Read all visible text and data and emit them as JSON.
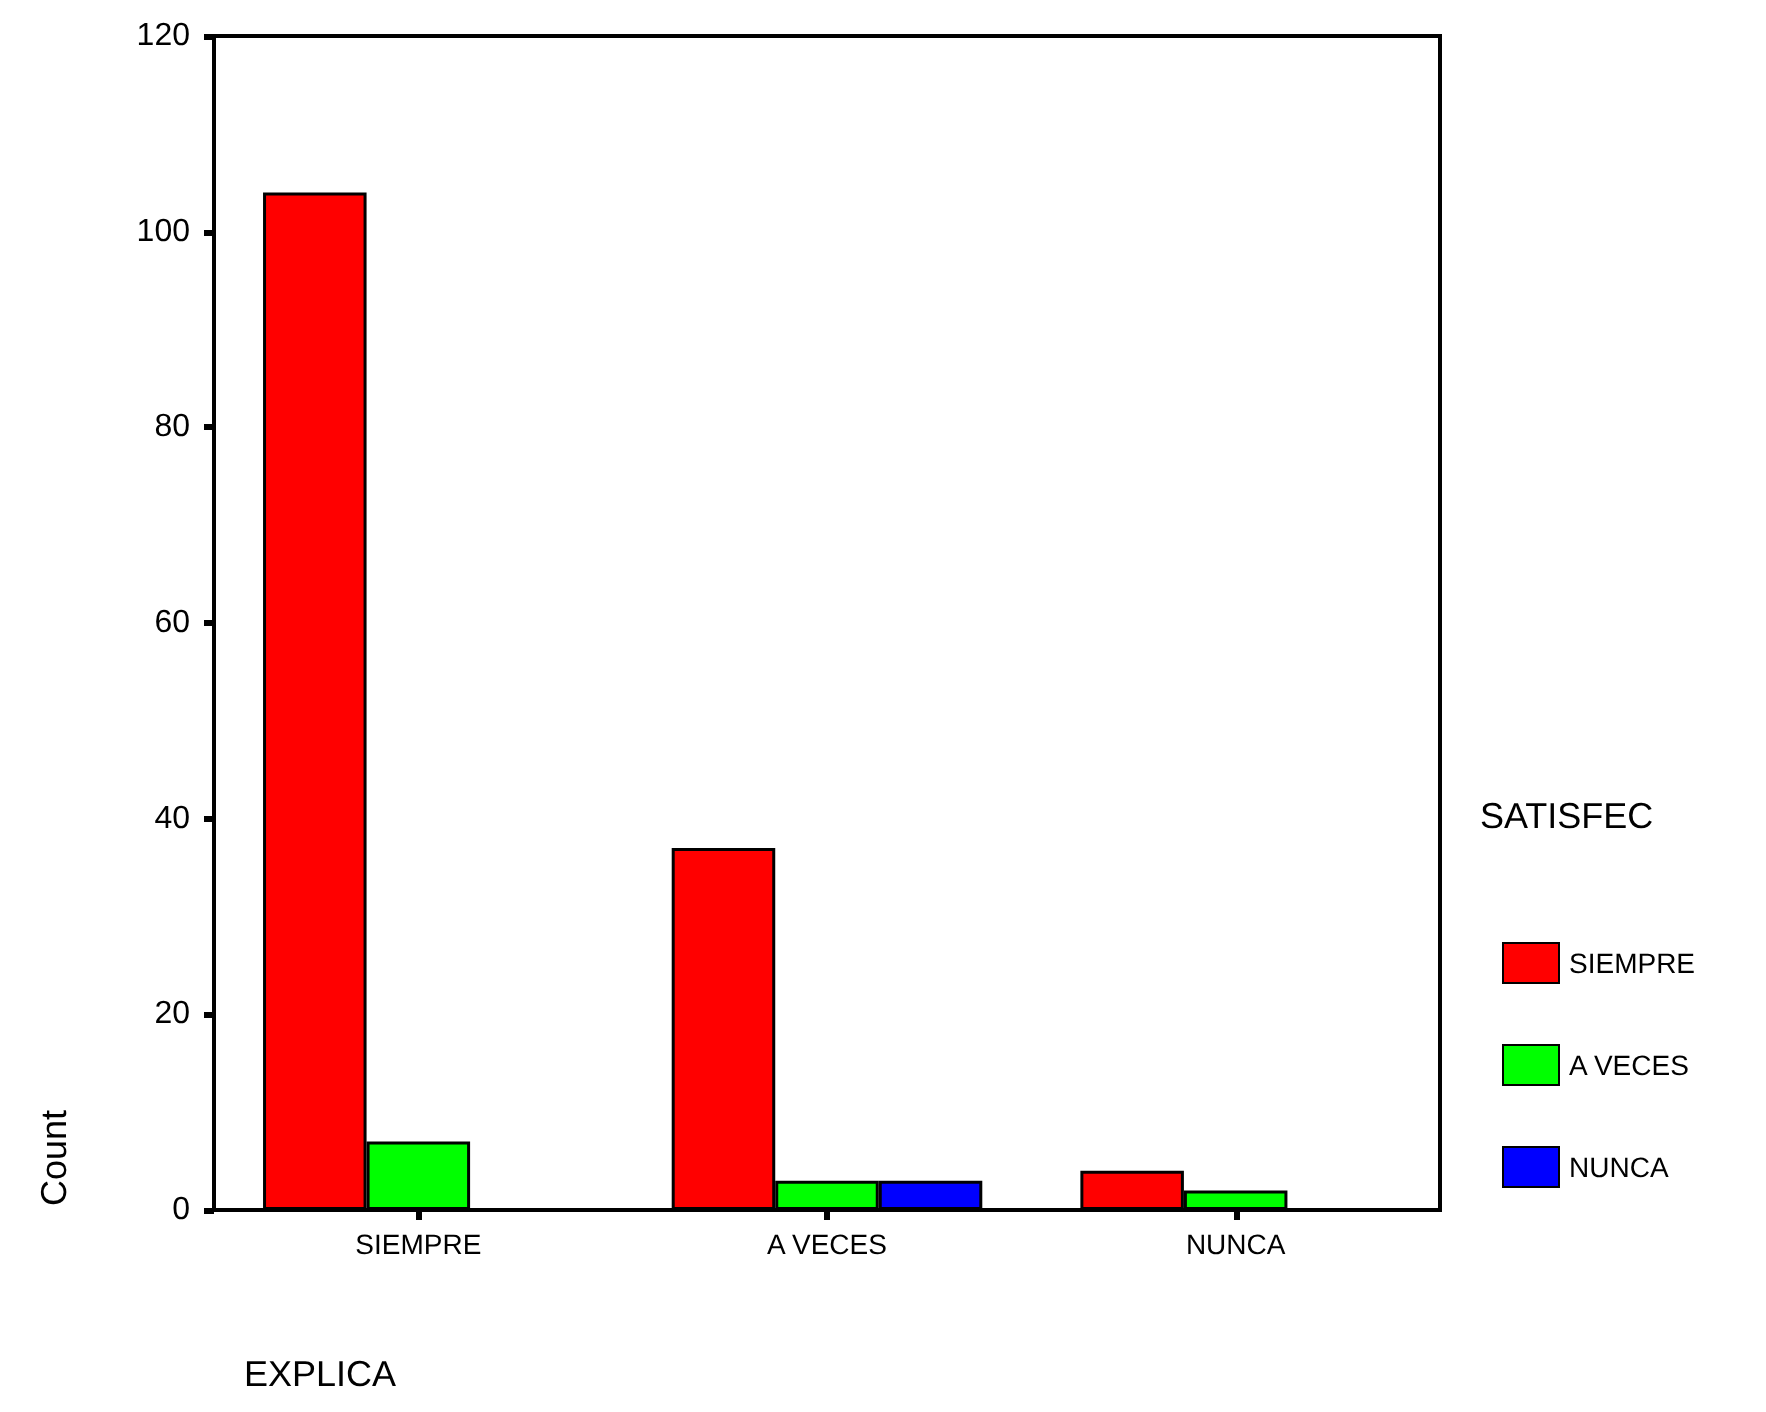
{
  "chart_data": {
    "type": "bar",
    "xlabel": "EXPLICA",
    "ylabel": "Count",
    "legend_title": "SATISFEC",
    "categories": [
      "SIEMPRE",
      "A VECES",
      "NUNCA"
    ],
    "series": [
      {
        "name": "SIEMPRE",
        "color": "#ff0000",
        "values": [
          104,
          37,
          4
        ]
      },
      {
        "name": "A VECES",
        "color": "#00ff00",
        "values": [
          7,
          3,
          2
        ]
      },
      {
        "name": "NUNCA",
        "color": "#0000ff",
        "values": [
          null,
          3,
          null
        ]
      }
    ],
    "ylim": [
      0,
      120
    ],
    "yticks": [
      0,
      20,
      40,
      60,
      80,
      100,
      120
    ],
    "grid": false,
    "legend": "right"
  }
}
